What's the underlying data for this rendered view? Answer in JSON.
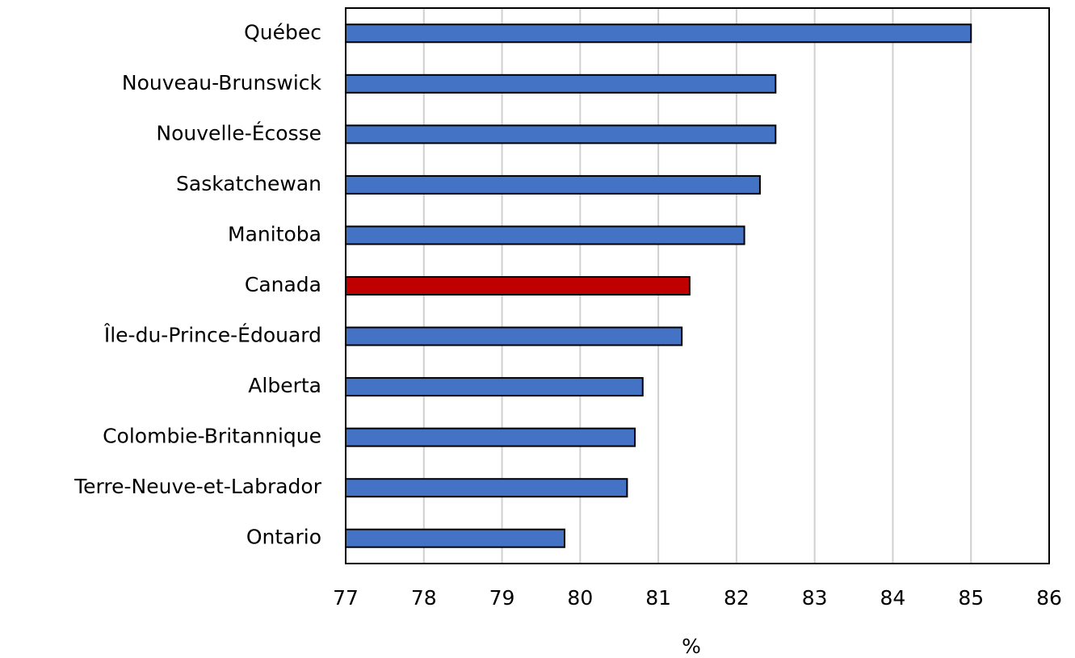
{
  "chart_data": {
    "type": "barh",
    "categories": [
      "Québec",
      "Nouveau-Brunswick",
      "Nouvelle-Écosse",
      "Saskatchewan",
      "Manitoba",
      "Canada",
      "Île-du-Prince-Édouard",
      "Alberta",
      "Colombie-Britannique",
      "Terre-Neuve-et-Labrador",
      "Ontario"
    ],
    "values": [
      85.0,
      82.5,
      82.5,
      82.3,
      82.1,
      81.4,
      81.3,
      80.8,
      80.7,
      80.6,
      79.8
    ],
    "colors": [
      "#4472c4",
      "#4472c4",
      "#4472c4",
      "#4472c4",
      "#4472c4",
      "#c00000",
      "#4472c4",
      "#4472c4",
      "#4472c4",
      "#4472c4",
      "#4472c4"
    ],
    "xlabel": "%",
    "xlim": [
      77,
      86
    ],
    "xticks": [
      77,
      78,
      79,
      80,
      81,
      82,
      83,
      84,
      85,
      86
    ],
    "grid": true
  }
}
